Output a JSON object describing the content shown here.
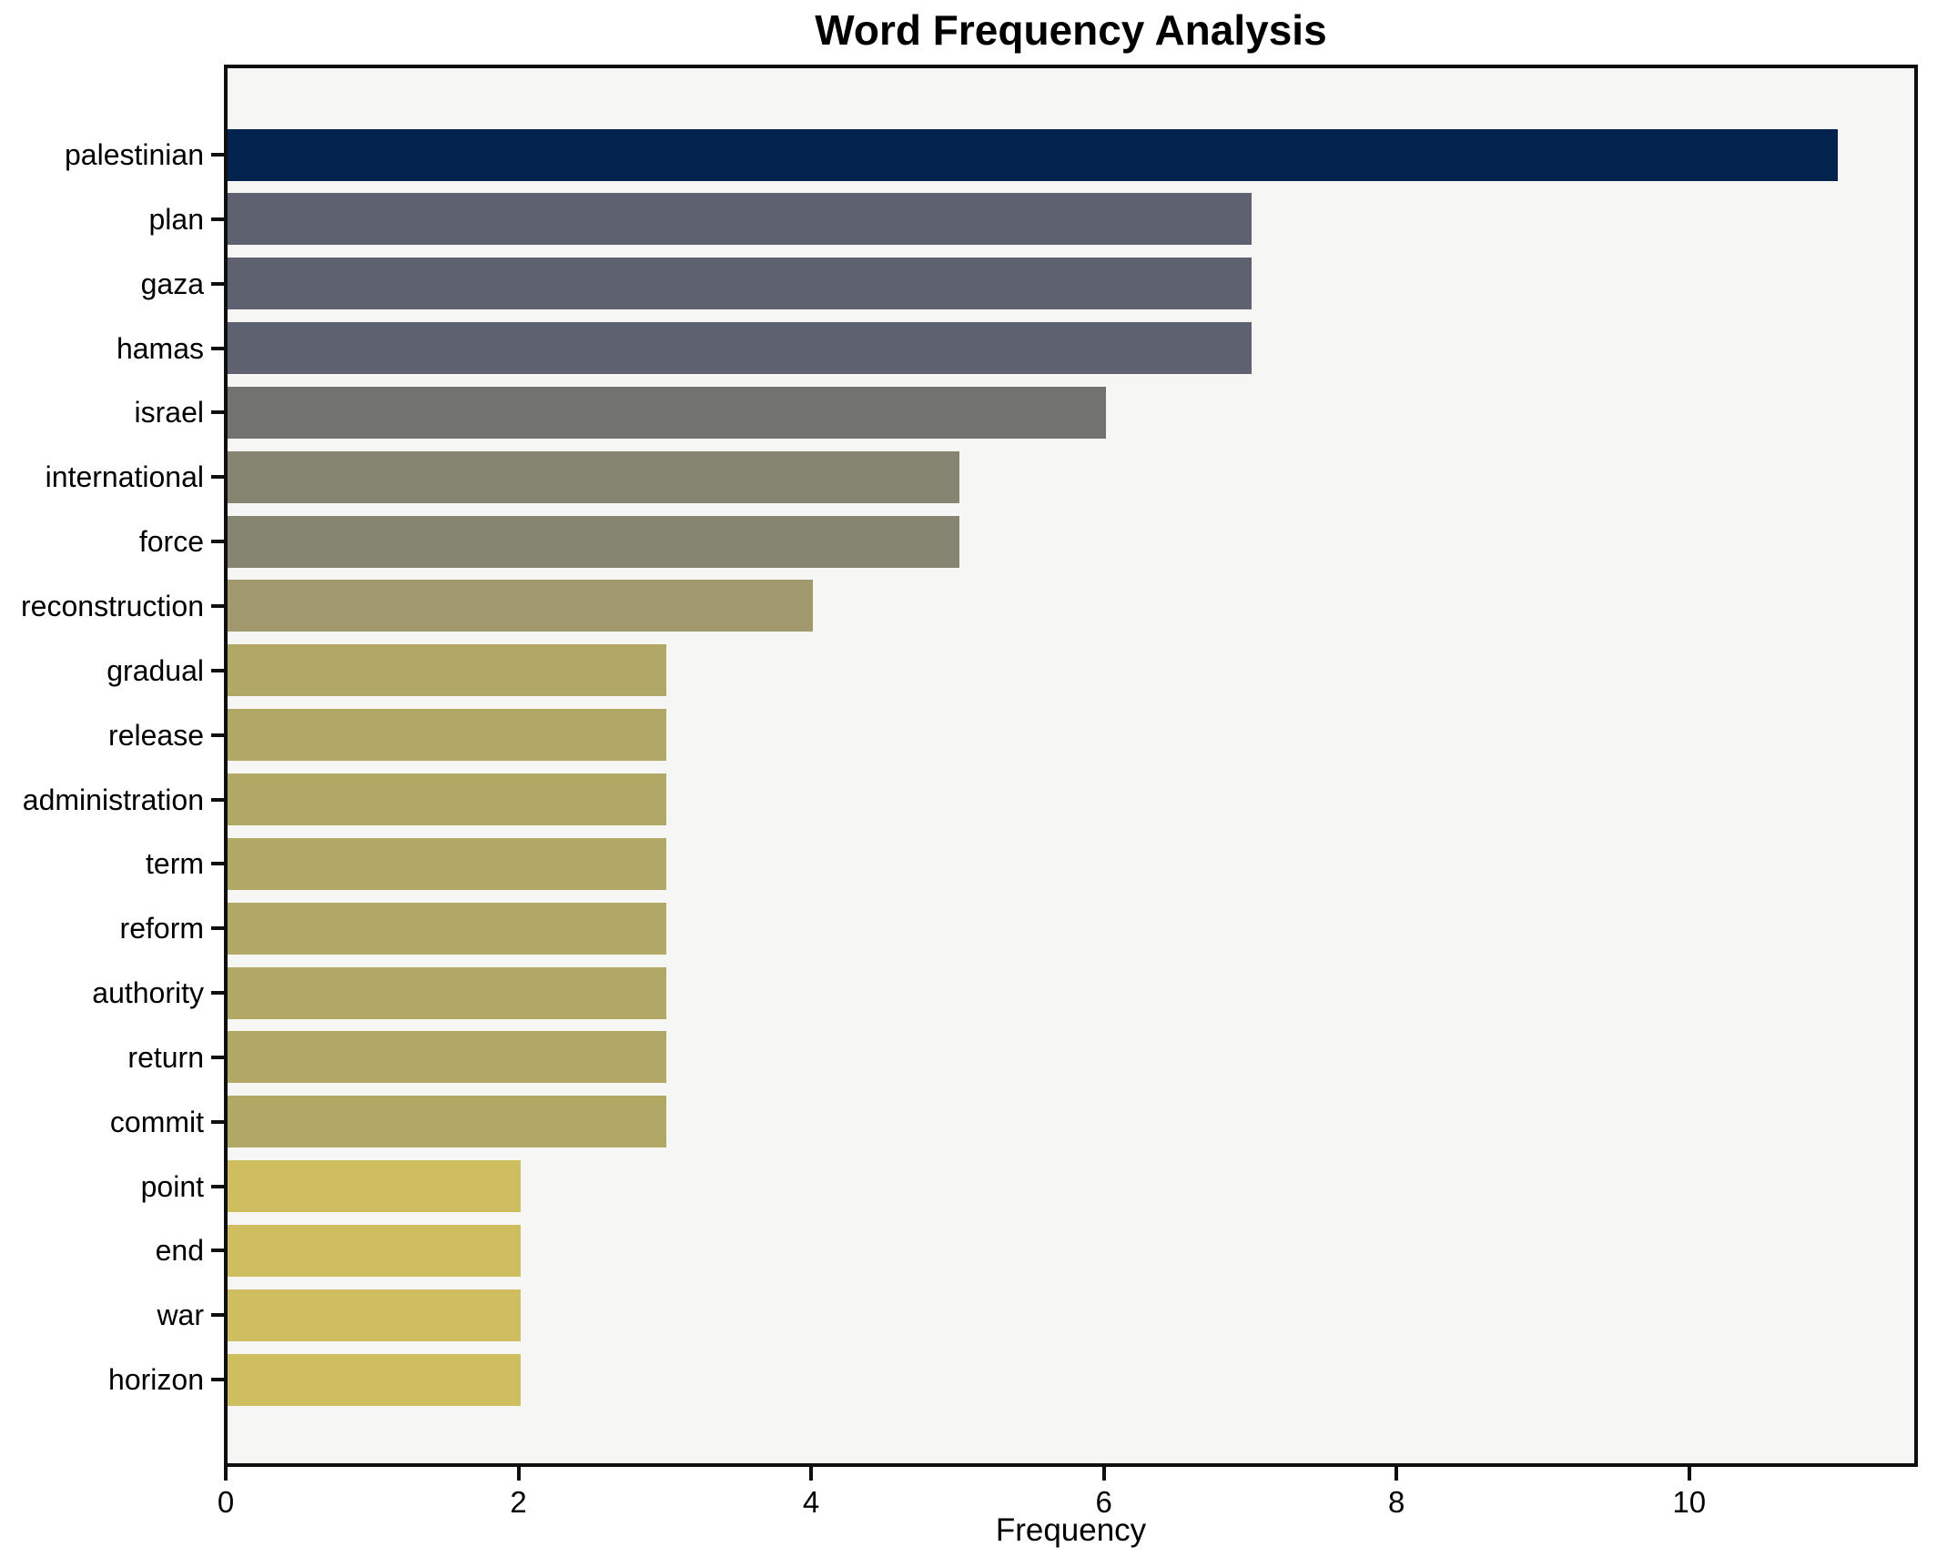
{
  "chart_data": {
    "type": "bar",
    "orientation": "horizontal",
    "title": "Word Frequency Analysis",
    "xlabel": "Frequency",
    "ylabel": "",
    "categories": [
      "palestinian",
      "plan",
      "gaza",
      "hamas",
      "israel",
      "international",
      "force",
      "reconstruction",
      "gradual",
      "release",
      "administration",
      "term",
      "reform",
      "authority",
      "return",
      "commit",
      "point",
      "end",
      "war",
      "horizon"
    ],
    "values": [
      11,
      7,
      7,
      7,
      6,
      5,
      5,
      4,
      3,
      3,
      3,
      3,
      3,
      3,
      3,
      3,
      2,
      2,
      2,
      2
    ],
    "bar_colors": [
      "#02234e",
      "#5d6170",
      "#5d6170",
      "#5d6170",
      "#727271",
      "#868571",
      "#868571",
      "#a2996e",
      "#b2a866",
      "#b2a866",
      "#b2a866",
      "#b2a866",
      "#b2a866",
      "#b2a866",
      "#b2a866",
      "#b2a866",
      "#cfbe5f",
      "#cfbe5f",
      "#cfbe5f",
      "#cfbe5f"
    ],
    "xticks": [
      "0",
      "2",
      "4",
      "6",
      "8",
      "10"
    ],
    "xtick_values": [
      0,
      2,
      4,
      6,
      8,
      10
    ],
    "xlim": [
      0,
      11.55
    ],
    "grid": false,
    "legend": null,
    "plot_bg_color": "#f6f6f5",
    "figure_bg_color": "#ffffff",
    "spine_color": "#0f0f0f"
  }
}
